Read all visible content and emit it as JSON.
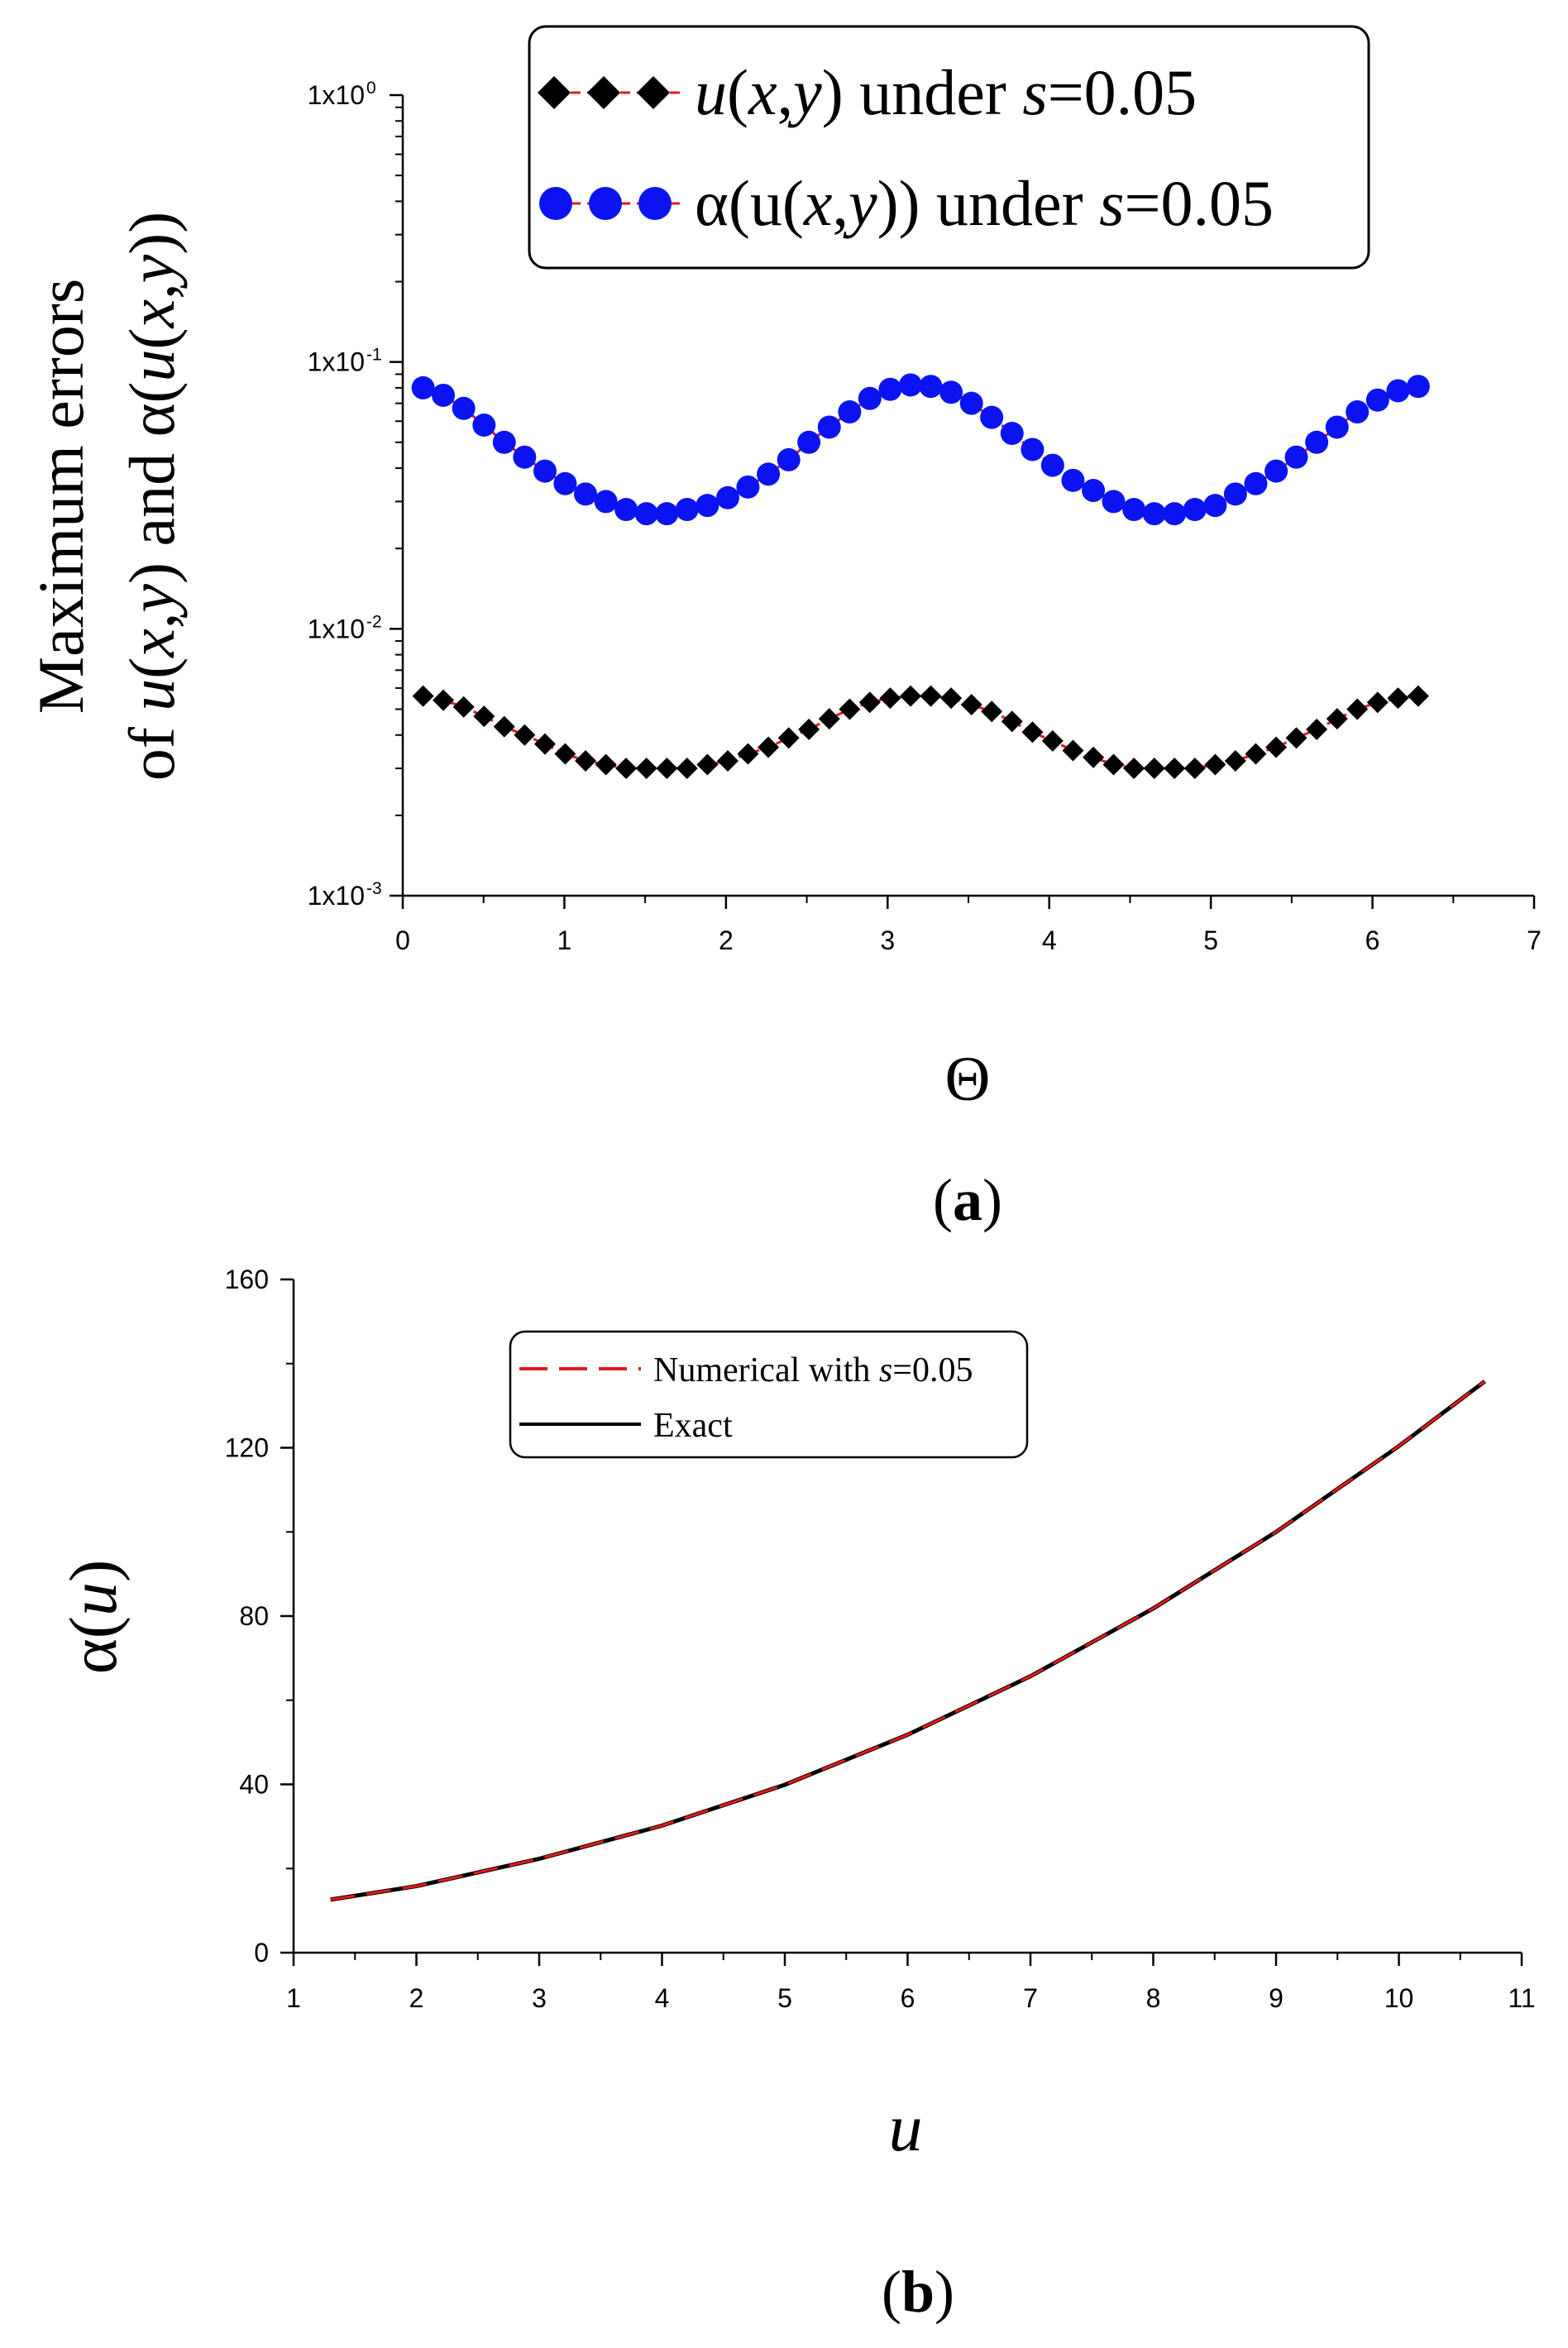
{
  "chart_data": [
    {
      "type": "scatter",
      "panel_label": {
        "open": "(",
        "letter": "a",
        "close": ")"
      },
      "xlabel": "Θ",
      "ylabel": {
        "line1": "Maximum errors",
        "line2": {
          "p1": "of ",
          "u1": "u",
          "p2": "(",
          "x1": "x",
          "p3": ",",
          "y1": "y",
          "p4": ") and α(",
          "u2": "u",
          "p5": "(",
          "x2": "x",
          "p6": ",",
          "y2": "y",
          "p7": "))"
        }
      },
      "y_scale": "log",
      "xlim": [
        0,
        7
      ],
      "ylim": [
        0.001,
        1
      ],
      "x_ticks": [
        "0",
        "1",
        "2",
        "3",
        "4",
        "5",
        "6",
        "7"
      ],
      "y_ticks": [
        {
          "value": 1,
          "base": "1x10",
          "exp": "0"
        },
        {
          "value": 0.1,
          "base": "1x10",
          "exp": "-1"
        },
        {
          "value": 0.01,
          "base": "1x10",
          "exp": "-2"
        },
        {
          "value": 0.001,
          "base": "1x10",
          "exp": "-3"
        }
      ],
      "legend": {
        "position": "top-right",
        "entries": [
          {
            "v": "u",
            "p1": "(",
            "x": "x",
            "c": ",",
            "y": "y",
            "p2": ")",
            "mid": " under ",
            "s": "s",
            "tail": "=0.05"
          },
          {
            "v": "α(u",
            "p1": "(",
            "x": "x",
            "c": ",",
            "y": "y",
            "p2": "))",
            "mid": " under ",
            "s": "s",
            "tail": "=0.05"
          }
        ]
      },
      "x": [
        0.126,
        0.251,
        0.377,
        0.503,
        0.628,
        0.754,
        0.88,
        1.005,
        1.131,
        1.257,
        1.382,
        1.508,
        1.634,
        1.759,
        1.885,
        2.011,
        2.136,
        2.262,
        2.388,
        2.513,
        2.639,
        2.765,
        2.89,
        3.016,
        3.142,
        3.267,
        3.393,
        3.519,
        3.644,
        3.77,
        3.896,
        4.021,
        4.147,
        4.273,
        4.398,
        4.524,
        4.65,
        4.775,
        4.901,
        5.027,
        5.152,
        5.278,
        5.404,
        5.529,
        5.655,
        5.781,
        5.906,
        6.032,
        6.158,
        6.283
      ],
      "series": [
        {
          "name": "u(x,y) under s=0.05",
          "marker": "diamond",
          "color": "#000000",
          "line_color": "#e41a1a",
          "values": [
            0.0056,
            0.0054,
            0.0051,
            0.0047,
            0.0043,
            0.004,
            0.0037,
            0.0034,
            0.0032,
            0.0031,
            0.003,
            0.003,
            0.003,
            0.003,
            0.0031,
            0.0032,
            0.0034,
            0.0036,
            0.0039,
            0.0042,
            0.0046,
            0.005,
            0.0053,
            0.0055,
            0.0056,
            0.0056,
            0.0055,
            0.0052,
            0.0049,
            0.0045,
            0.0041,
            0.0038,
            0.0035,
            0.0033,
            0.0031,
            0.003,
            0.003,
            0.003,
            0.003,
            0.0031,
            0.0032,
            0.0034,
            0.0036,
            0.0039,
            0.0042,
            0.0046,
            0.005,
            0.0053,
            0.0055,
            0.0056
          ]
        },
        {
          "name": "α(u(x,y)) under s=0.05",
          "marker": "circle",
          "color": "#0a14f0",
          "line_color": "#e41a1a",
          "values": [
            0.08,
            0.075,
            0.067,
            0.058,
            0.05,
            0.044,
            0.039,
            0.035,
            0.032,
            0.03,
            0.028,
            0.027,
            0.027,
            0.028,
            0.029,
            0.031,
            0.034,
            0.038,
            0.043,
            0.05,
            0.057,
            0.065,
            0.073,
            0.079,
            0.082,
            0.081,
            0.077,
            0.07,
            0.062,
            0.054,
            0.047,
            0.041,
            0.036,
            0.033,
            0.03,
            0.028,
            0.027,
            0.027,
            0.028,
            0.029,
            0.032,
            0.035,
            0.039,
            0.044,
            0.05,
            0.057,
            0.065,
            0.072,
            0.078,
            0.081
          ]
        }
      ]
    },
    {
      "type": "line",
      "panel_label": {
        "open": "(",
        "letter": "b",
        "close": ")"
      },
      "xlabel": "u",
      "ylabel": {
        "pre": "α(",
        "var": "u",
        "post": ")"
      },
      "xlim": [
        1,
        11
      ],
      "ylim": [
        0,
        160
      ],
      "x_ticks": [
        "1",
        "2",
        "3",
        "4",
        "5",
        "6",
        "7",
        "8",
        "9",
        "10",
        "11"
      ],
      "y_ticks": [
        "0",
        "40",
        "80",
        "120",
        "160"
      ],
      "legend": {
        "position": "top-center",
        "entries": [
          {
            "label": "Numerical with ",
            "var": "s",
            "tail": "=0.05",
            "style": "dashed",
            "color": "#e41a1a"
          },
          {
            "label": "Exact",
            "style": "solid",
            "color": "#000000"
          }
        ]
      },
      "x": [
        1.3,
        2.0,
        3.0,
        4.0,
        5.0,
        6.0,
        7.0,
        8.0,
        9.0,
        10.0,
        10.7
      ],
      "series": [
        {
          "name": "Numerical with s=0.05",
          "color": "#e41a1a",
          "values": [
            12.6,
            15.8,
            22.3,
            30.2,
            39.9,
            51.8,
            65.7,
            81.8,
            100.0,
            120.4,
            135.8
          ]
        },
        {
          "name": "Exact",
          "color": "#000000",
          "values": [
            12.6,
            15.8,
            22.3,
            30.2,
            39.9,
            51.8,
            65.7,
            81.8,
            100.0,
            120.4,
            135.8
          ]
        }
      ]
    }
  ]
}
